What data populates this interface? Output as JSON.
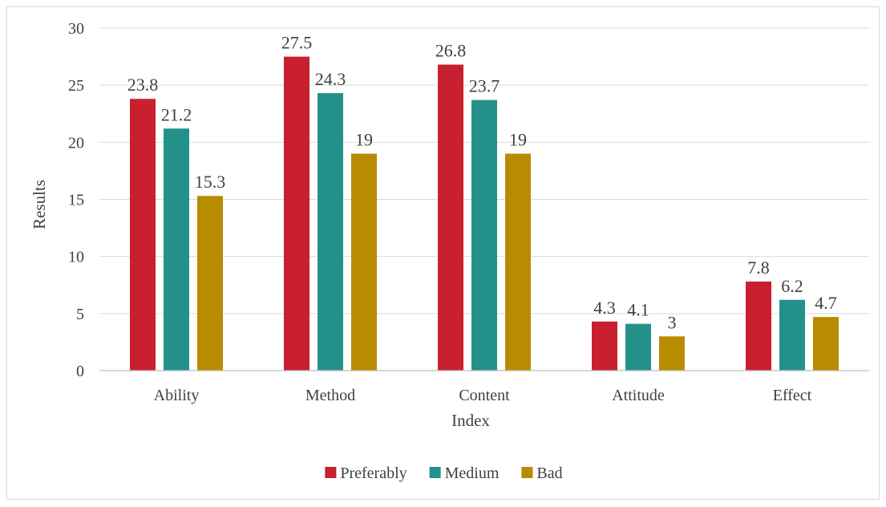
{
  "chart_data": {
    "type": "bar",
    "title": "",
    "xlabel": "Index",
    "ylabel": "Results",
    "categories": [
      "Ability",
      "Method",
      "Content",
      "Attitude",
      "Effect"
    ],
    "series": [
      {
        "name": "Preferably",
        "color": "#c8202f",
        "values": [
          23.8,
          27.5,
          26.8,
          4.3,
          7.8
        ]
      },
      {
        "name": "Medium",
        "color": "#23918a",
        "values": [
          21.2,
          24.3,
          23.7,
          4.1,
          6.2
        ]
      },
      {
        "name": "Bad",
        "color": "#b88c00",
        "values": [
          15.3,
          19,
          19,
          3,
          4.7
        ]
      }
    ],
    "ylim": [
      0,
      30
    ],
    "yticks": [
      0,
      5,
      10,
      15,
      20,
      25,
      30
    ],
    "grid": true,
    "legend_position": "bottom",
    "data_labels": true
  }
}
